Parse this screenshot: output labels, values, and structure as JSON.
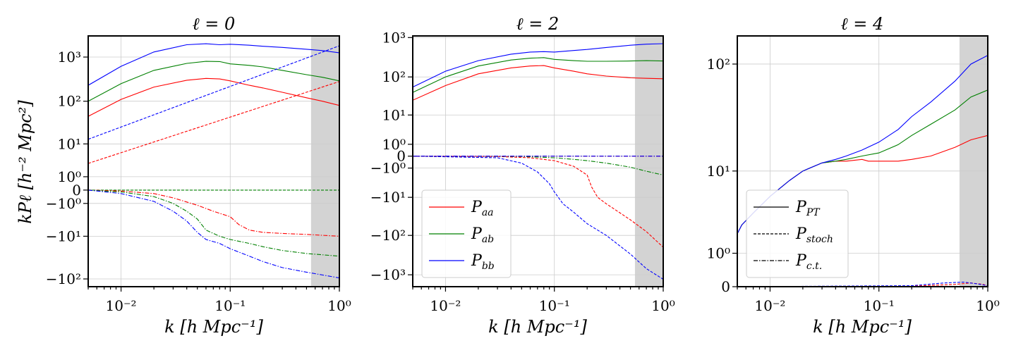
{
  "figure": {
    "ylabel": "kPℓ [h⁻² Mpc²]",
    "xlabel": "k [h Mpc⁻¹]"
  },
  "colors": {
    "aa": "#ff0000",
    "ab": "#008000",
    "bb": "#0000ff",
    "shade": "#d3d3d3",
    "grid": "#cccccc"
  },
  "chart_data": [
    {
      "type": "line",
      "title": "ℓ = 0",
      "xlabel": "k [h Mpc⁻¹]",
      "ylabel": "kPℓ [h⁻² Mpc²]",
      "xscale": "log",
      "yscale": "symlog",
      "xlim": [
        0.005,
        1.0
      ],
      "ylim": [
        -150,
        3000
      ],
      "grid": true,
      "xticks": [
        {
          "v": 0.01,
          "label": "10⁻²"
        },
        {
          "v": 0.1,
          "label": "10⁻¹"
        },
        {
          "v": 1,
          "label": "10⁰"
        }
      ],
      "yticks": [
        {
          "v": 1000,
          "label": "10³"
        },
        {
          "v": 100,
          "label": "10²"
        },
        {
          "v": 10,
          "label": "10¹"
        },
        {
          "v": 1,
          "label": "10⁰"
        },
        {
          "v": 0,
          "label": "0"
        },
        {
          "v": -1,
          "label": "−10⁰"
        },
        {
          "v": -10,
          "label": "−10¹"
        },
        {
          "v": -100,
          "label": "−10²"
        }
      ],
      "shaded_region": [
        0.55,
        1.0
      ],
      "series": [
        {
          "color": "aa",
          "style": "solid",
          "x": [
            0.005,
            0.01,
            0.02,
            0.04,
            0.06,
            0.08,
            0.1,
            0.15,
            0.2,
            0.3,
            0.5,
            0.7,
            1.0
          ],
          "y": [
            45,
            110,
            210,
            300,
            330,
            320,
            290,
            230,
            200,
            160,
            120,
            100,
            80
          ]
        },
        {
          "color": "ab",
          "style": "solid",
          "x": [
            0.005,
            0.01,
            0.02,
            0.04,
            0.06,
            0.08,
            0.1,
            0.15,
            0.2,
            0.3,
            0.5,
            0.7,
            1.0
          ],
          "y": [
            100,
            250,
            500,
            720,
            800,
            790,
            700,
            650,
            600,
            500,
            400,
            350,
            290
          ]
        },
        {
          "color": "bb",
          "style": "solid",
          "x": [
            0.005,
            0.01,
            0.02,
            0.04,
            0.06,
            0.08,
            0.1,
            0.15,
            0.2,
            0.3,
            0.5,
            0.7,
            1.0
          ],
          "y": [
            230,
            620,
            1300,
            1900,
            2000,
            1900,
            1950,
            1850,
            1750,
            1650,
            1500,
            1400,
            1250
          ]
        },
        {
          "color": "aa",
          "style": "dashed",
          "x": [
            0.005,
            1.0
          ],
          "y": [
            3,
            280
          ]
        },
        {
          "color": "bb",
          "style": "dashed",
          "x": [
            0.005,
            1.0
          ],
          "y": [
            13,
            1800
          ]
        },
        {
          "color": "ab",
          "style": "dashed",
          "x": [
            0.005,
            1.0
          ],
          "y": [
            0,
            0
          ]
        },
        {
          "color": "aa",
          "style": "dashdot",
          "x": [
            0.005,
            0.01,
            0.02,
            0.03,
            0.05,
            0.07,
            0.1,
            0.12,
            0.15,
            0.2,
            0.3,
            0.5,
            1.0
          ],
          "y": [
            0,
            -0.05,
            -0.2,
            -0.5,
            -1.2,
            -2,
            -3,
            -5,
            -7,
            -8,
            -8.5,
            -9,
            -10
          ]
        },
        {
          "color": "ab",
          "style": "dashdot",
          "x": [
            0.005,
            0.01,
            0.02,
            0.03,
            0.04,
            0.05,
            0.06,
            0.08,
            0.1,
            0.15,
            0.2,
            0.3,
            0.5,
            1.0
          ],
          "y": [
            0,
            -0.1,
            -0.4,
            -1,
            -2,
            -3.5,
            -7,
            -10,
            -12,
            -15,
            -18,
            -22,
            -26,
            -30
          ]
        },
        {
          "color": "bb",
          "style": "dashdot",
          "x": [
            0.005,
            0.01,
            0.02,
            0.03,
            0.04,
            0.05,
            0.06,
            0.08,
            0.1,
            0.15,
            0.2,
            0.3,
            0.5,
            1.0
          ],
          "y": [
            0,
            -0.2,
            -0.8,
            -2,
            -4,
            -8,
            -12,
            -15,
            -20,
            -30,
            -40,
            -55,
            -70,
            -95
          ]
        }
      ]
    },
    {
      "type": "line",
      "title": "ℓ = 2",
      "xlabel": "k [h Mpc⁻¹]",
      "xscale": "log",
      "yscale": "symlog",
      "xlim": [
        0.005,
        1.0
      ],
      "ylim": [
        -2000,
        1100
      ],
      "grid": true,
      "xticks": [
        {
          "v": 0.01,
          "label": "10⁻²"
        },
        {
          "v": 0.1,
          "label": "10⁻¹"
        },
        {
          "v": 1,
          "label": "10⁰"
        }
      ],
      "yticks": [
        {
          "v": 1000,
          "label": "10³"
        },
        {
          "v": 100,
          "label": "10²"
        },
        {
          "v": 10,
          "label": "10¹"
        },
        {
          "v": 1,
          "label": "10⁰"
        },
        {
          "v": 0,
          "label": "0"
        },
        {
          "v": -1,
          "label": "−10⁰"
        },
        {
          "v": -10,
          "label": "−10¹"
        },
        {
          "v": -100,
          "label": "−10²"
        },
        {
          "v": -1000,
          "label": "−10³"
        }
      ],
      "shaded_region": [
        0.55,
        1.0
      ],
      "legend": {
        "position": "lower-left",
        "entries": [
          {
            "label": "Paa",
            "main": "P",
            "sub": "aa",
            "color": "aa",
            "style": "solid"
          },
          {
            "label": "Pab",
            "main": "P",
            "sub": "ab",
            "color": "ab",
            "style": "solid"
          },
          {
            "label": "Pbb",
            "main": "P",
            "sub": "bb",
            "color": "bb",
            "style": "solid"
          }
        ]
      },
      "series": [
        {
          "color": "aa",
          "style": "solid",
          "x": [
            0.005,
            0.01,
            0.02,
            0.04,
            0.06,
            0.08,
            0.1,
            0.15,
            0.2,
            0.3,
            0.5,
            0.7,
            1.0
          ],
          "y": [
            25,
            60,
            120,
            170,
            190,
            195,
            170,
            140,
            120,
            105,
            95,
            92,
            90
          ]
        },
        {
          "color": "ab",
          "style": "solid",
          "x": [
            0.005,
            0.01,
            0.02,
            0.04,
            0.06,
            0.08,
            0.1,
            0.15,
            0.2,
            0.3,
            0.5,
            0.7,
            1.0
          ],
          "y": [
            40,
            100,
            190,
            270,
            300,
            310,
            280,
            260,
            250,
            250,
            255,
            260,
            255
          ]
        },
        {
          "color": "bb",
          "style": "solid",
          "x": [
            0.005,
            0.01,
            0.02,
            0.04,
            0.06,
            0.08,
            0.1,
            0.15,
            0.2,
            0.3,
            0.5,
            0.7,
            1.0
          ],
          "y": [
            55,
            140,
            260,
            380,
            430,
            440,
            430,
            470,
            500,
            560,
            640,
            680,
            700
          ]
        },
        {
          "color": "aa",
          "style": "dashed",
          "x": [
            0.005,
            0.03,
            0.06,
            0.1,
            0.15,
            0.2,
            0.22,
            0.25,
            0.3,
            0.5,
            0.7,
            1.0
          ],
          "y": [
            0,
            -0.02,
            -0.1,
            -0.3,
            -0.8,
            -2,
            -5,
            -10,
            -15,
            -40,
            -80,
            -200
          ]
        },
        {
          "color": "bb",
          "style": "dashed",
          "x": [
            0.005,
            0.03,
            0.05,
            0.07,
            0.09,
            0.1,
            0.12,
            0.15,
            0.2,
            0.3,
            0.5,
            0.7,
            1.0
          ],
          "y": [
            0,
            -0.1,
            -0.5,
            -1.5,
            -4,
            -7,
            -15,
            -25,
            -50,
            -100,
            -300,
            -700,
            -1300
          ]
        },
        {
          "color": "ab",
          "style": "dashdot",
          "x": [
            0.005,
            0.05,
            0.1,
            0.15,
            0.2,
            0.3,
            0.5,
            0.7,
            1.0
          ],
          "y": [
            0,
            -0.02,
            -0.1,
            -0.2,
            -0.3,
            -0.5,
            -0.9,
            -1.4,
            -2
          ]
        },
        {
          "color": "aa",
          "style": "dashdot",
          "x": [
            0.005,
            1.0
          ],
          "y": [
            0,
            0
          ]
        },
        {
          "color": "bb",
          "style": "dashdot",
          "x": [
            0.005,
            1.0
          ],
          "y": [
            0,
            0
          ]
        }
      ]
    },
    {
      "type": "line",
      "title": "ℓ = 4",
      "xlabel": "k [h Mpc⁻¹]",
      "xscale": "log",
      "yscale": "symlog",
      "xlim": [
        0.005,
        1.0
      ],
      "ylim": [
        0,
        180
      ],
      "grid": true,
      "xticks": [
        {
          "v": 0.01,
          "label": "10⁻²"
        },
        {
          "v": 0.1,
          "label": "10⁻¹"
        },
        {
          "v": 1,
          "label": "10⁰"
        }
      ],
      "yticks": [
        {
          "v": 100,
          "label": "10²"
        },
        {
          "v": 10,
          "label": "10¹"
        },
        {
          "v": 1,
          "label": "10⁰"
        },
        {
          "v": 0,
          "label": "0"
        }
      ],
      "shaded_region": [
        0.55,
        1.0
      ],
      "legend": {
        "position": "lower-left",
        "entries": [
          {
            "label": "PPT",
            "main": "P",
            "sub": "PT",
            "color": "#000000",
            "style": "solid"
          },
          {
            "label": "Pstoch",
            "main": "P",
            "sub": "stoch",
            "color": "#000000",
            "style": "dashed"
          },
          {
            "label": "Pc.t.",
            "main": "P",
            "sub": "c.t.",
            "color": "#000000",
            "style": "dashdot"
          }
        ]
      },
      "series": [
        {
          "color": "aa",
          "style": "solid",
          "x": [
            0.005,
            0.0055,
            0.007,
            0.01,
            0.015,
            0.02,
            0.03,
            0.04,
            0.05,
            0.07,
            0.08,
            0.1,
            0.15,
            0.2,
            0.3,
            0.5,
            0.7,
            1.0
          ],
          "y": [
            2,
            2.6,
            3.6,
            5.5,
            8,
            10,
            12,
            12.5,
            12.5,
            13,
            12.5,
            12.5,
            12.5,
            13,
            14,
            17,
            20,
            22
          ]
        },
        {
          "color": "ab",
          "style": "solid",
          "x": [
            0.005,
            0.0055,
            0.007,
            0.01,
            0.015,
            0.02,
            0.03,
            0.04,
            0.05,
            0.07,
            0.1,
            0.15,
            0.2,
            0.3,
            0.5,
            0.7,
            1.0
          ],
          "y": [
            2,
            2.6,
            3.6,
            5.5,
            8,
            10,
            12,
            12.5,
            13,
            14,
            15,
            18,
            22,
            28,
            38,
            50,
            58
          ]
        },
        {
          "color": "bb",
          "style": "solid",
          "x": [
            0.005,
            0.0055,
            0.007,
            0.01,
            0.015,
            0.02,
            0.03,
            0.04,
            0.05,
            0.07,
            0.1,
            0.15,
            0.2,
            0.3,
            0.5,
            0.7,
            1.0
          ],
          "y": [
            2,
            2.6,
            3.6,
            5.5,
            8,
            10,
            12,
            13,
            14,
            16,
            19,
            25,
            33,
            45,
            70,
            100,
            120
          ]
        },
        {
          "color": "aa",
          "style": "dashed",
          "x": [
            0.005,
            0.2,
            0.5,
            0.7,
            0.9,
            1.0
          ],
          "y": [
            0,
            0.01,
            0.05,
            0.08,
            0.05,
            0.02
          ]
        },
        {
          "color": "bb",
          "style": "dashed",
          "x": [
            0.005,
            0.2,
            0.4,
            0.6,
            0.8,
            1.0
          ],
          "y": [
            0,
            0.02,
            0.08,
            0.1,
            0.06,
            0.02
          ]
        },
        {
          "color": "ab",
          "style": "dashdot",
          "x": [
            0.005,
            0.2,
            0.4,
            0.6,
            0.8,
            1.0
          ],
          "y": [
            0,
            -0.01,
            -0.03,
            -0.05,
            -0.08,
            -0.1
          ]
        },
        {
          "color": "bb",
          "style": "dashdot",
          "x": [
            0.005,
            0.5,
            0.7,
            0.8,
            0.9,
            1.0
          ],
          "y": [
            0,
            0,
            -0.01,
            -0.04,
            -0.1,
            -0.2
          ]
        }
      ]
    }
  ]
}
